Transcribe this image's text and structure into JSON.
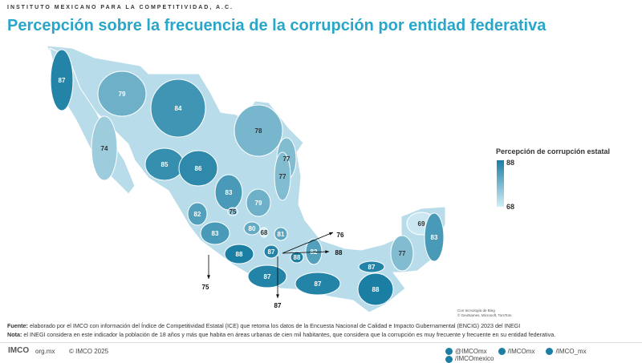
{
  "header": {
    "org": "INSTITUTO MEXICANO PARA LA COMPETITIVIDAD, A.C.",
    "title": "Percepción sobre la frecuencia de la corrupción por entidad federativa"
  },
  "legend": {
    "title": "Percepción de corrupción estatal",
    "max": 88,
    "min": 68
  },
  "map": {
    "regions": [
      87,
      74,
      79,
      84,
      78,
      77,
      77,
      85,
      86,
      83,
      79,
      82,
      75,
      83,
      80,
      68,
      81,
      88,
      87,
      88,
      82,
      87,
      87,
      88,
      87,
      77,
      69,
      83
    ],
    "callouts": [
      76,
      88,
      75,
      87
    ],
    "attribution": [
      "Con tecnología de Bing",
      "© GeoNames, Microsoft, TomTom"
    ]
  },
  "footer": {
    "source_label": "Fuente:",
    "source": "elaborado por el IMCO con información del Índice de Competitividad Estatal (ICE) que retoma los datos de la Encuesta Nacional de Calidad e Impacto Gubernamental (ENCIG) 2023 del INEGI",
    "note_label": "Nota:",
    "note": "el INEGI considera en este indicador la población de 18 años y más que habita en áreas urbanas de cien mil habitantes, que considera que la corrupción es muy frecuente y frecuente en su entidad federativa.",
    "logo": "IMCO",
    "site": "org.mx",
    "copyright": "© IMCO 2025",
    "social": [
      "@IMCOmx",
      "/IMCOmx",
      "/IMCO_mx",
      "/IMCOmexico"
    ]
  }
}
